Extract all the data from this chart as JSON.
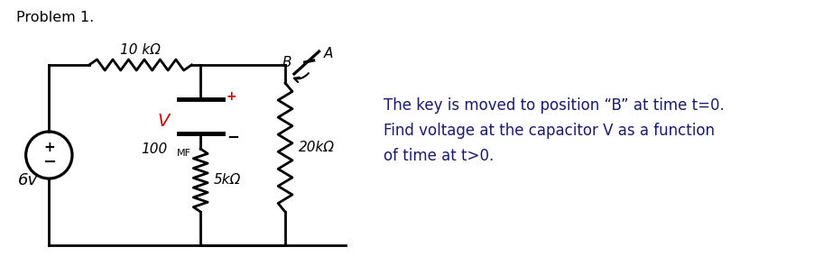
{
  "title": "Problem 1.",
  "problem_text_line1": "The key is moved to position “B” at time t=0.",
  "problem_text_line2": "Find voltage at the capacitor V as a function",
  "problem_text_line3": "of time at t>0.",
  "text_color": "#1a1a6e",
  "bg_color": "#ffffff",
  "circuit_color": "#000000",
  "v_label_color": "#cc0000",
  "label_6v": "6v",
  "label_10k": "10 kΩ",
  "label_100mf": "100",
  "label_100mf_sub": "MF",
  "label_5k": "5kΩ",
  "label_20k": "20kΩ",
  "label_A": "A",
  "label_B": "B",
  "label_V": "V",
  "label_plus": "+",
  "label_minus": "−",
  "label_plus_cap": "+",
  "lw": 2.0
}
